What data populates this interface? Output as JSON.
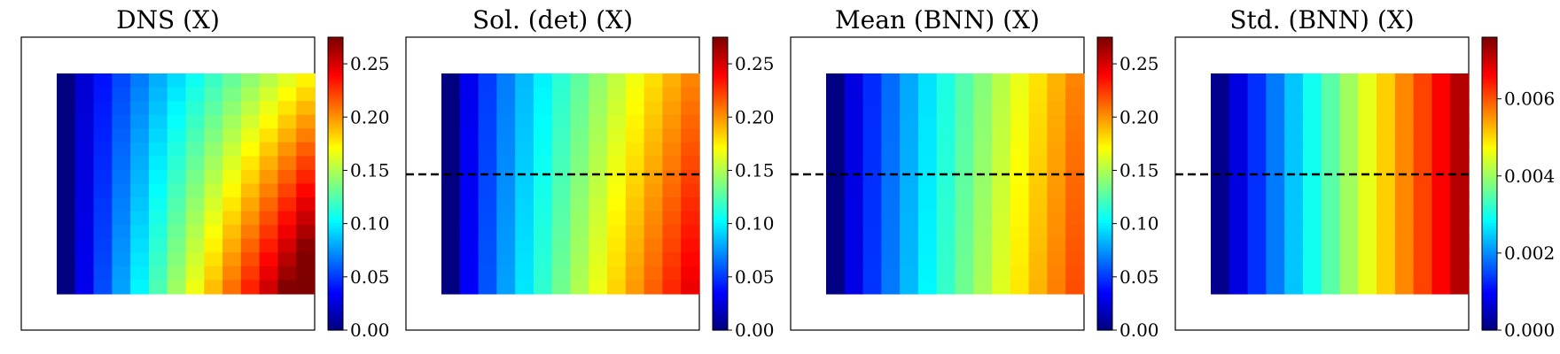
{
  "chart_data": [
    {
      "type": "heatmap",
      "title": "DNS (X)",
      "grid": false,
      "dashed_line": false,
      "colormap": "jet",
      "clim": [
        0,
        0.275
      ],
      "colorbar_ticks": [
        "0.00",
        "0.05",
        "0.10",
        "0.15",
        "0.20",
        "0.25"
      ],
      "colorbar_tick_values": [
        0,
        0.05,
        0.1,
        0.15,
        0.2,
        0.25
      ],
      "rows": 16,
      "cols": 14,
      "field": {
        "kind": "dns",
        "x_min": 0.0,
        "x_max": 0.175,
        "y_gain": 0.075,
        "y_power": 1.1,
        "curve": 0.8
      }
    },
    {
      "type": "heatmap",
      "title": "Sol. (det) (X)",
      "grid": false,
      "dashed_line": true,
      "colormap": "jet",
      "clim": [
        0,
        0.275
      ],
      "colorbar_ticks": [
        "0.00",
        "0.05",
        "0.10",
        "0.15",
        "0.20",
        "0.25"
      ],
      "colorbar_tick_values": [
        0,
        0.05,
        0.1,
        0.15,
        0.2,
        0.25
      ],
      "rows": 16,
      "cols": 14,
      "field": {
        "kind": "gradient",
        "x_min": 0.0,
        "x_max": 0.205,
        "y_gain": 0.04,
        "curve": 0.75
      }
    },
    {
      "type": "heatmap",
      "title": "Mean (BNN) (X)",
      "grid": false,
      "dashed_line": true,
      "colormap": "jet",
      "clim": [
        0,
        0.275
      ],
      "colorbar_ticks": [
        "0.00",
        "0.05",
        "0.10",
        "0.15",
        "0.20",
        "0.25"
      ],
      "colorbar_tick_values": [
        0,
        0.05,
        0.1,
        0.15,
        0.2,
        0.25
      ],
      "rows": 16,
      "cols": 14,
      "field": {
        "kind": "gradient",
        "x_min": 0.0,
        "x_max": 0.205,
        "y_gain": 0.015,
        "curve": 0.8
      }
    },
    {
      "type": "heatmap",
      "title": "Std. (BNN) (X)",
      "grid": false,
      "dashed_line": true,
      "colormap": "jet",
      "clim": [
        0,
        0.0076
      ],
      "colorbar_ticks": [
        "0.000",
        "0.002",
        "0.004",
        "0.006"
      ],
      "colorbar_tick_values": [
        0,
        0.002,
        0.004,
        0.006
      ],
      "rows": 16,
      "cols": 14,
      "field": {
        "kind": "gradient",
        "x_min": 0.0001,
        "x_max": 0.0072,
        "y_gain": 0.0,
        "curve": 0.95
      }
    }
  ]
}
